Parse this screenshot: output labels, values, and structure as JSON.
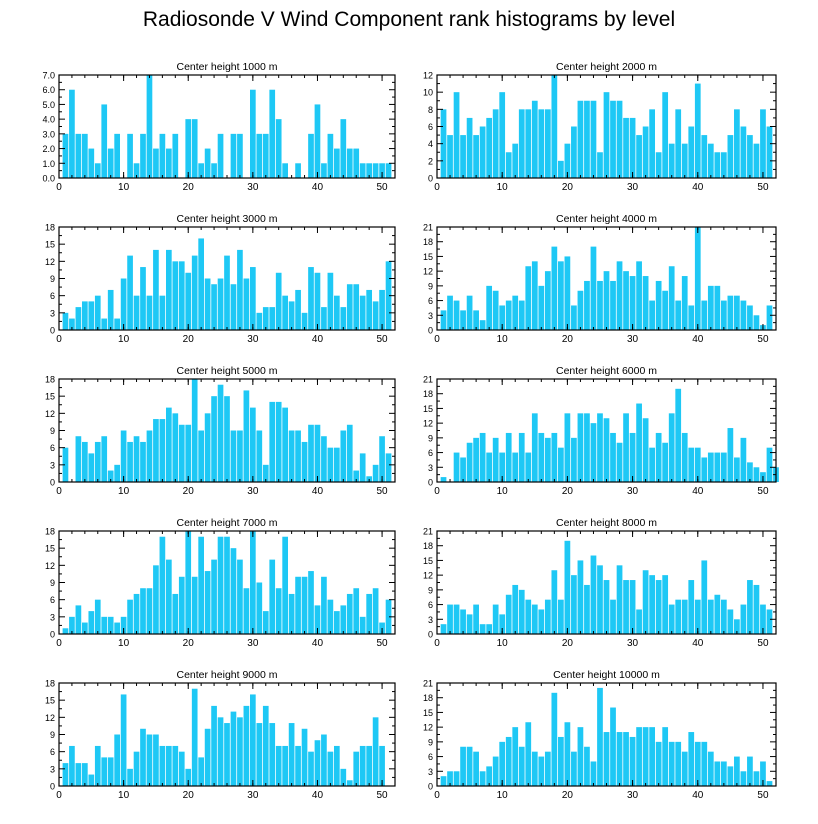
{
  "figure": {
    "title": "Radiosonde V Wind Component rank histograms by level",
    "bar_color": "#1ec8f5"
  },
  "chart_data": [
    {
      "type": "bar",
      "title": "Center height 1000 m",
      "xlim": [
        0,
        52
      ],
      "ylim": [
        0,
        7
      ],
      "xticks": [
        0,
        10,
        20,
        30,
        40,
        50
      ],
      "yticks": [
        0,
        1,
        2,
        3,
        4,
        5,
        6,
        7
      ],
      "ytick_labels": [
        "0.0",
        "1.0",
        "2.0",
        "3.0",
        "4.0",
        "5.0",
        "6.0",
        "7.0"
      ],
      "values": [
        3,
        6,
        3,
        3,
        2,
        1,
        5,
        2,
        3,
        0,
        3,
        1,
        3,
        7,
        2,
        3,
        2,
        3,
        0,
        4,
        4,
        1,
        2,
        1,
        3,
        0,
        3,
        3,
        0,
        6,
        3,
        3,
        6,
        4,
        1,
        0,
        1,
        0,
        3,
        5,
        1,
        3,
        2,
        4,
        2,
        2,
        1,
        1,
        1,
        1,
        1
      ]
    },
    {
      "type": "bar",
      "title": "Center height 2000 m",
      "xlim": [
        0,
        52
      ],
      "ylim": [
        0,
        12
      ],
      "xticks": [
        0,
        10,
        20,
        30,
        40,
        50
      ],
      "yticks": [
        0,
        2,
        4,
        6,
        8,
        10,
        12
      ],
      "ytick_labels": [
        "0",
        "2",
        "4",
        "6",
        "8",
        "10",
        "12"
      ],
      "values": [
        8,
        5,
        10,
        5,
        7,
        5,
        6,
        7,
        8,
        10,
        3,
        4,
        8,
        8,
        9,
        8,
        8,
        12,
        2,
        4,
        6,
        9,
        9,
        9,
        3,
        10,
        9,
        9,
        7,
        7,
        5,
        6,
        8,
        3,
        10,
        4,
        8,
        4,
        6,
        11,
        5,
        4,
        3,
        3,
        5,
        8,
        6,
        5,
        4,
        8,
        6
      ]
    },
    {
      "type": "bar",
      "title": "Center height 3000 m",
      "xlim": [
        0,
        52
      ],
      "ylim": [
        0,
        18
      ],
      "xticks": [
        0,
        10,
        20,
        30,
        40,
        50
      ],
      "yticks": [
        0,
        3,
        6,
        9,
        12,
        15,
        18
      ],
      "ytick_labels": [
        "0",
        "3",
        "6",
        "9",
        "12",
        "15",
        "18"
      ],
      "values": [
        3,
        2,
        4,
        5,
        5,
        6,
        2,
        7,
        2,
        9,
        13,
        6,
        11,
        6,
        14,
        6,
        14,
        12,
        12,
        10,
        13,
        16,
        9,
        8,
        9,
        13,
        8,
        14,
        9,
        11,
        3,
        4,
        4,
        10,
        6,
        5,
        7,
        3,
        11,
        10,
        4,
        10,
        6,
        4,
        8,
        8,
        6,
        7,
        5,
        7,
        12
      ]
    },
    {
      "type": "bar",
      "title": "Center height 4000 m",
      "xlim": [
        0,
        52
      ],
      "ylim": [
        0,
        21
      ],
      "xticks": [
        0,
        10,
        20,
        30,
        40,
        50
      ],
      "yticks": [
        0,
        3,
        6,
        9,
        12,
        15,
        18,
        21
      ],
      "ytick_labels": [
        "0",
        "3",
        "6",
        "9",
        "12",
        "15",
        "18",
        "21"
      ],
      "values": [
        4,
        7,
        6,
        4,
        7,
        4,
        2,
        9,
        8,
        5,
        6,
        7,
        6,
        13,
        14,
        9,
        12,
        17,
        14,
        15,
        5,
        8,
        10,
        17,
        10,
        12,
        10,
        14,
        12,
        11,
        14,
        11,
        6,
        10,
        8,
        13,
        6,
        11,
        5,
        21,
        6,
        9,
        9,
        6,
        7,
        7,
        6,
        5,
        3,
        1,
        5
      ]
    },
    {
      "type": "bar",
      "title": "Center height 5000 m",
      "xlim": [
        0,
        52
      ],
      "ylim": [
        0,
        18
      ],
      "xticks": [
        0,
        10,
        20,
        30,
        40,
        50
      ],
      "yticks": [
        0,
        3,
        6,
        9,
        12,
        15,
        18
      ],
      "ytick_labels": [
        "0",
        "3",
        "6",
        "9",
        "12",
        "15",
        "18"
      ],
      "values": [
        6,
        0,
        8,
        7,
        5,
        7,
        8,
        2,
        3,
        9,
        7,
        8,
        7,
        9,
        11,
        11,
        13,
        12,
        10,
        10,
        18,
        9,
        12,
        15,
        17,
        15,
        9,
        9,
        16,
        13,
        9,
        3,
        14,
        14,
        13,
        9,
        9,
        7,
        10,
        10,
        8,
        6,
        6,
        9,
        10,
        2,
        5,
        1,
        3,
        8,
        5
      ]
    },
    {
      "type": "bar",
      "title": "Center height 6000 m",
      "xlim": [
        0,
        52
      ],
      "ylim": [
        0,
        21
      ],
      "xticks": [
        0,
        10,
        20,
        30,
        40,
        50
      ],
      "yticks": [
        0,
        3,
        6,
        9,
        12,
        15,
        18,
        21
      ],
      "ytick_labels": [
        "0",
        "3",
        "6",
        "9",
        "12",
        "15",
        "18",
        "21"
      ],
      "values": [
        1,
        0,
        6,
        5,
        8,
        9,
        10,
        6,
        9,
        6,
        10,
        6,
        10,
        6,
        14,
        10,
        9,
        10,
        7,
        14,
        9,
        14,
        14,
        12,
        14,
        13,
        10,
        8,
        14,
        10,
        16,
        13,
        7,
        10,
        8,
        14,
        19,
        10,
        7,
        7,
        5,
        6,
        6,
        6,
        11,
        5,
        9,
        4,
        3,
        2,
        7,
        3
      ]
    },
    {
      "type": "bar",
      "title": "Center height 7000 m",
      "xlim": [
        0,
        52
      ],
      "ylim": [
        0,
        18
      ],
      "xticks": [
        0,
        10,
        20,
        30,
        40,
        50
      ],
      "yticks": [
        0,
        3,
        6,
        9,
        12,
        15,
        18
      ],
      "ytick_labels": [
        "0",
        "3",
        "6",
        "9",
        "12",
        "15",
        "18"
      ],
      "values": [
        1,
        3,
        5,
        2,
        4,
        6,
        3,
        3,
        2,
        3,
        6,
        7,
        8,
        8,
        12,
        17,
        13,
        7,
        10,
        18,
        10,
        17,
        11,
        13,
        17,
        17,
        15,
        13,
        8,
        18,
        9,
        4,
        13,
        8,
        17,
        7,
        10,
        10,
        11,
        5,
        10,
        6,
        4,
        5,
        7,
        8,
        3,
        7,
        8,
        2,
        6
      ]
    },
    {
      "type": "bar",
      "title": "Center height 8000 m",
      "xlim": [
        0,
        52
      ],
      "ylim": [
        0,
        21
      ],
      "xticks": [
        0,
        10,
        20,
        30,
        40,
        50
      ],
      "yticks": [
        0,
        3,
        6,
        9,
        12,
        15,
        18,
        21
      ],
      "ytick_labels": [
        "0",
        "3",
        "6",
        "9",
        "12",
        "15",
        "18",
        "21"
      ],
      "values": [
        2,
        6,
        6,
        5,
        4,
        6,
        2,
        2,
        6,
        4,
        8,
        10,
        9,
        7,
        6,
        5,
        7,
        13,
        7,
        19,
        12,
        15,
        10,
        16,
        14,
        11,
        7,
        14,
        11,
        11,
        5,
        13,
        12,
        11,
        12,
        6,
        7,
        7,
        11,
        7,
        15,
        7,
        8,
        7,
        5,
        3,
        6,
        11,
        10,
        6,
        5
      ]
    },
    {
      "type": "bar",
      "title": "Center height 9000 m",
      "xlim": [
        0,
        52
      ],
      "ylim": [
        0,
        18
      ],
      "xticks": [
        0,
        10,
        20,
        30,
        40,
        50
      ],
      "yticks": [
        0,
        3,
        6,
        9,
        12,
        15,
        18
      ],
      "ytick_labels": [
        "0",
        "3",
        "6",
        "9",
        "12",
        "15",
        "18"
      ],
      "values": [
        4,
        7,
        4,
        4,
        2,
        7,
        5,
        5,
        9,
        16,
        3,
        6,
        10,
        9,
        9,
        7,
        7,
        7,
        6,
        3,
        17,
        5,
        10,
        14,
        12,
        11,
        13,
        12,
        14,
        16,
        11,
        14,
        11,
        7,
        7,
        11,
        7,
        10,
        6,
        8,
        9,
        6,
        7,
        3,
        1,
        6,
        7,
        7,
        12,
        7
      ]
    },
    {
      "type": "bar",
      "title": "Center height 10000 m",
      "xlim": [
        0,
        52
      ],
      "ylim": [
        0,
        21
      ],
      "xticks": [
        0,
        10,
        20,
        30,
        40,
        50
      ],
      "yticks": [
        0,
        3,
        6,
        9,
        12,
        15,
        18,
        21
      ],
      "ytick_labels": [
        "0",
        "3",
        "6",
        "9",
        "12",
        "15",
        "18",
        "21"
      ],
      "values": [
        2,
        3,
        3,
        8,
        8,
        7,
        3,
        4,
        6,
        9,
        10,
        12,
        8,
        13,
        7,
        6,
        7,
        19,
        10,
        13,
        7,
        12,
        8,
        5,
        20,
        11,
        16,
        11,
        11,
        10,
        12,
        12,
        12,
        9,
        12,
        9,
        9,
        7,
        11,
        9,
        9,
        7,
        5,
        5,
        4,
        6,
        3,
        6,
        3,
        5,
        1
      ]
    }
  ]
}
